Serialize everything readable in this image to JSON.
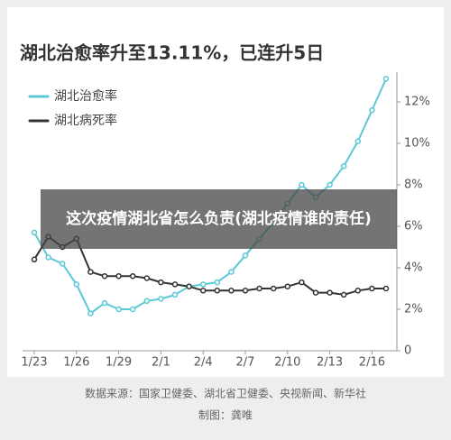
{
  "chart_data": {
    "type": "line",
    "title": "湖北治愈率升至13.11%，已连升5日",
    "categories": [
      "1/23",
      null,
      null,
      "1/26",
      null,
      null,
      "1/29",
      null,
      null,
      "2/1",
      null,
      null,
      "2/4",
      null,
      null,
      "2/7",
      null,
      null,
      "2/10",
      null,
      null,
      "2/13",
      null,
      null,
      "2/16",
      null
    ],
    "series": [
      {
        "name": "湖北治愈率",
        "color": "#5bc8d6",
        "values": [
          5.7,
          4.5,
          4.2,
          3.2,
          1.8,
          2.3,
          2.0,
          2.0,
          2.4,
          2.5,
          2.7,
          3.1,
          3.2,
          3.3,
          3.8,
          4.6,
          5.4,
          6.2,
          7.1,
          8.0,
          7.4,
          8.0,
          8.9,
          10.1,
          11.6,
          13.11
        ]
      },
      {
        "name": "湖北病死率",
        "color": "#333333",
        "values": [
          4.4,
          5.5,
          5.0,
          5.4,
          3.8,
          3.6,
          3.6,
          3.6,
          3.5,
          3.3,
          3.2,
          3.1,
          2.9,
          2.9,
          2.9,
          2.9,
          3.0,
          3.0,
          3.1,
          3.3,
          2.8,
          2.8,
          2.7,
          2.9,
          3.0,
          3.0
        ]
      }
    ],
    "ylim": [
      0,
      13.5
    ],
    "yticks": [
      0,
      {
        "value": 2,
        "label": "2%"
      },
      {
        "value": 4,
        "label": "4%"
      },
      {
        "value": 6,
        "label": "6%"
      },
      {
        "value": 8,
        "label": "8%"
      },
      {
        "value": 10,
        "label": "10%"
      },
      {
        "value": 12,
        "label": "12%"
      }
    ],
    "legend": "top-left",
    "source": "数据来源：国家卫健委、湖北省卫健委、央视新闻、新华社",
    "credit": "制图：龚唯"
  },
  "overlay_caption": "这次疫情湖北省怎么负责(湖北疫情谁的责任)"
}
